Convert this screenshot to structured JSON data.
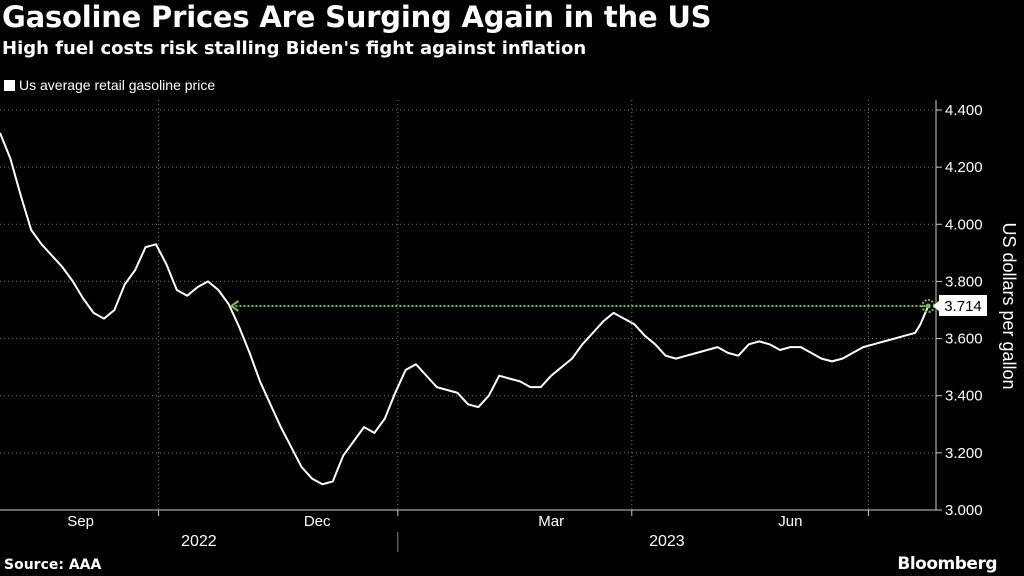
{
  "header": {
    "title": "Gasoline Prices Are Surging Again in the US",
    "subtitle": "High fuel costs risk stalling Biden's fight against inflation"
  },
  "footer": {
    "source": "Source: AAA",
    "brand": "Bloomberg"
  },
  "colors": {
    "background": "#000000",
    "line": "#ffffff",
    "annotation": "#7cc242",
    "grid": "#7a7a7a"
  },
  "chart_data": {
    "type": "line",
    "legend": "Us average retail gasoline price",
    "ylabel": "US dollars per gallon",
    "ylim": [
      3.0,
      4.4
    ],
    "yticks": [
      "4.400",
      "4.200",
      "4.000",
      "3.800",
      "3.600",
      "3.400",
      "3.200",
      "3.000"
    ],
    "ytick_values": [
      4.4,
      4.2,
      4.0,
      3.8,
      3.6,
      3.4,
      3.2,
      3.0
    ],
    "xlim": [
      "2022-08-01",
      "2023-07-27"
    ],
    "month_ticks": [
      {
        "label": "Sep",
        "date": "2022-09-01"
      },
      {
        "label": "Dec",
        "date": "2022-12-01"
      },
      {
        "label": "Mar",
        "date": "2023-03-01"
      },
      {
        "label": "Jun",
        "date": "2023-06-01"
      }
    ],
    "gridlines": [
      "2022-10-01",
      "2023-01-01",
      "2023-04-01",
      "2023-07-01"
    ],
    "years": [
      "2022",
      "2023"
    ],
    "annotation": {
      "label": "3.714",
      "value": 3.714,
      "from": "2022-10-29",
      "to": "2023-07-24"
    },
    "series": [
      {
        "x": [
          "2022-08-01",
          "2022-08-05",
          "2022-08-09",
          "2022-08-13",
          "2022-08-17",
          "2022-08-21",
          "2022-08-25",
          "2022-08-29",
          "2022-09-02",
          "2022-09-06",
          "2022-09-10",
          "2022-09-14",
          "2022-09-18",
          "2022-09-22",
          "2022-09-26",
          "2022-09-30",
          "2022-10-04",
          "2022-10-08",
          "2022-10-12",
          "2022-10-16",
          "2022-10-20",
          "2022-10-24",
          "2022-10-28",
          "2022-11-01",
          "2022-11-05",
          "2022-11-09",
          "2022-11-13",
          "2022-11-17",
          "2022-11-21",
          "2022-11-25",
          "2022-11-29",
          "2022-12-03",
          "2022-12-07",
          "2022-12-11",
          "2022-12-15",
          "2022-12-19",
          "2022-12-23",
          "2022-12-27",
          "2022-12-31",
          "2023-01-04",
          "2023-01-08",
          "2023-01-12",
          "2023-01-16",
          "2023-01-20",
          "2023-01-24",
          "2023-01-28",
          "2023-02-01",
          "2023-02-05",
          "2023-02-09",
          "2023-02-13",
          "2023-02-17",
          "2023-02-21",
          "2023-02-25",
          "2023-03-01",
          "2023-03-05",
          "2023-03-09",
          "2023-03-13",
          "2023-03-17",
          "2023-03-21",
          "2023-03-25",
          "2023-03-29",
          "2023-04-02",
          "2023-04-06",
          "2023-04-10",
          "2023-04-14",
          "2023-04-18",
          "2023-04-22",
          "2023-04-26",
          "2023-04-30",
          "2023-05-04",
          "2023-05-08",
          "2023-05-12",
          "2023-05-16",
          "2023-05-20",
          "2023-05-24",
          "2023-05-28",
          "2023-06-01",
          "2023-06-05",
          "2023-06-09",
          "2023-06-13",
          "2023-06-17",
          "2023-06-21",
          "2023-06-25",
          "2023-06-29",
          "2023-07-03",
          "2023-07-07",
          "2023-07-11",
          "2023-07-15",
          "2023-07-19",
          "2023-07-21",
          "2023-07-24"
        ],
        "values": [
          4.32,
          4.23,
          4.1,
          3.98,
          3.93,
          3.89,
          3.85,
          3.8,
          3.74,
          3.69,
          3.67,
          3.7,
          3.79,
          3.84,
          3.92,
          3.93,
          3.86,
          3.77,
          3.75,
          3.78,
          3.8,
          3.77,
          3.72,
          3.64,
          3.55,
          3.45,
          3.37,
          3.29,
          3.22,
          3.15,
          3.11,
          3.09,
          3.1,
          3.19,
          3.24,
          3.29,
          3.27,
          3.32,
          3.41,
          3.49,
          3.51,
          3.47,
          3.43,
          3.42,
          3.41,
          3.37,
          3.36,
          3.4,
          3.47,
          3.46,
          3.45,
          3.43,
          3.43,
          3.47,
          3.5,
          3.53,
          3.58,
          3.62,
          3.66,
          3.69,
          3.67,
          3.65,
          3.61,
          3.58,
          3.54,
          3.53,
          3.54,
          3.55,
          3.56,
          3.57,
          3.55,
          3.54,
          3.58,
          3.59,
          3.58,
          3.56,
          3.57,
          3.57,
          3.55,
          3.53,
          3.52,
          3.53,
          3.55,
          3.57,
          3.58,
          3.59,
          3.6,
          3.61,
          3.62,
          3.65,
          3.714
        ]
      }
    ]
  }
}
